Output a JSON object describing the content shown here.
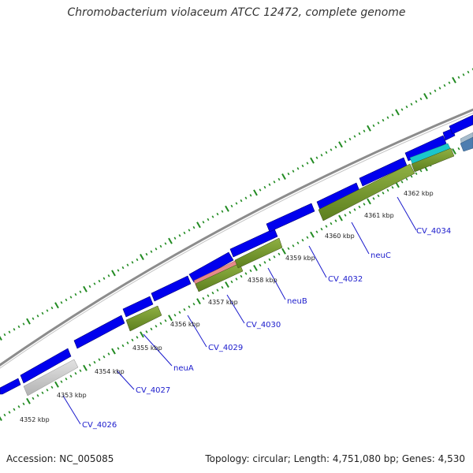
{
  "header": {
    "title": "Chromobacterium violaceum ATCC 12472, complete genome"
  },
  "footer": {
    "accession": "Accession: NC_005085",
    "stats": "Topology: circular; Length: 4,751,080 bp; Genes: 4,530"
  },
  "colors": {
    "cds": "#0000ee",
    "backbone": "#8c8c8c",
    "gene_feature": "#6b8e23",
    "rrna_pink": "#e58a8a",
    "cyan_feature": "#1ac6cc",
    "gray_feature": "#c8c8c8",
    "tick": "#228b22",
    "label": "#1a1acc"
  },
  "kbp_labels": [
    "4352 kbp",
    "4353 kbp",
    "4354 kbp",
    "4355 kbp",
    "4356 kbp",
    "4357 kbp",
    "4358 kbp",
    "4359 kbp",
    "4360 kbp",
    "4361 kbp",
    "4362 kbp"
  ],
  "gene_labels": [
    "CV_4026",
    "CV_4027",
    "neuA",
    "CV_4029",
    "CV_4030",
    "neuB",
    "CV_4032",
    "neuC",
    "CV_4034"
  ]
}
